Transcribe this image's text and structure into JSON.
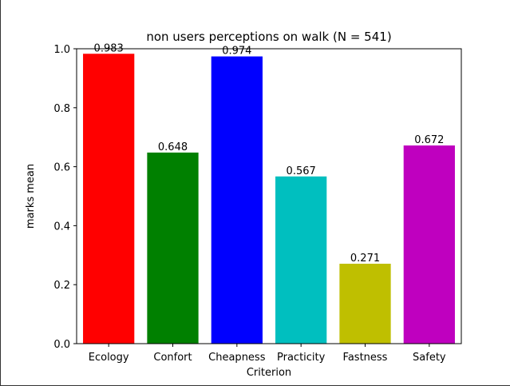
{
  "chart_data": {
    "type": "bar",
    "title": "non users perceptions on walk (N = 541)",
    "xlabel": "Criterion",
    "ylabel": "marks mean",
    "categories": [
      "Ecology",
      "Confort",
      "Cheapness",
      "Practicity",
      "Fastness",
      "Safety"
    ],
    "values": [
      0.983,
      0.648,
      0.974,
      0.567,
      0.271,
      0.672
    ],
    "value_labels": [
      "0.983",
      "0.648",
      "0.974",
      "0.567",
      "0.271",
      "0.672"
    ],
    "colors": [
      "#ff0000",
      "#008000",
      "#0000ff",
      "#00bfbf",
      "#bfbf00",
      "#bf00bf"
    ],
    "ylim": [
      0,
      1.0
    ],
    "yticks": [
      "0.0",
      "0.2",
      "0.4",
      "0.6",
      "0.8",
      "1.0"
    ],
    "grid": false
  }
}
